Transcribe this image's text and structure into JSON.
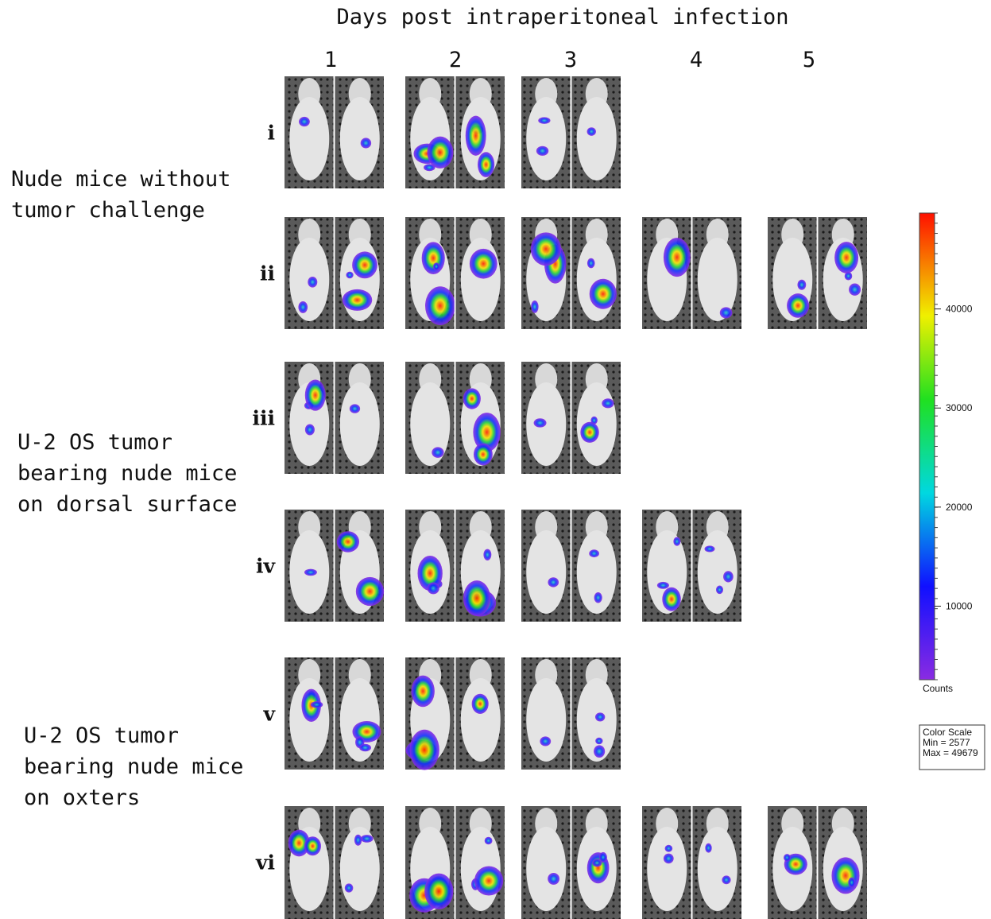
{
  "header": {
    "title": "Days post intraperitoneal infection",
    "columns": [
      "1",
      "2",
      "3",
      "4",
      "5"
    ]
  },
  "groups": [
    {
      "lines": [
        "Nude mice without",
        "tumor challenge"
      ]
    },
    {
      "lines": [
        "U-2 OS tumor",
        "bearing nude mice",
        "on dorsal surface"
      ]
    },
    {
      "lines": [
        "U-2 OS tumor",
        "bearing nude mice",
        "on oxters"
      ]
    }
  ],
  "rows": [
    "i",
    "ii",
    "iii",
    "iv",
    "v",
    "vi"
  ],
  "color_scale": {
    "lim": [
      2577,
      49679
    ],
    "ticks": [
      10000,
      20000,
      30000,
      40000
    ],
    "unit": "Counts",
    "box": [
      "Color Scale",
      "Min = 2577",
      "Max = 49679"
    ]
  }
}
